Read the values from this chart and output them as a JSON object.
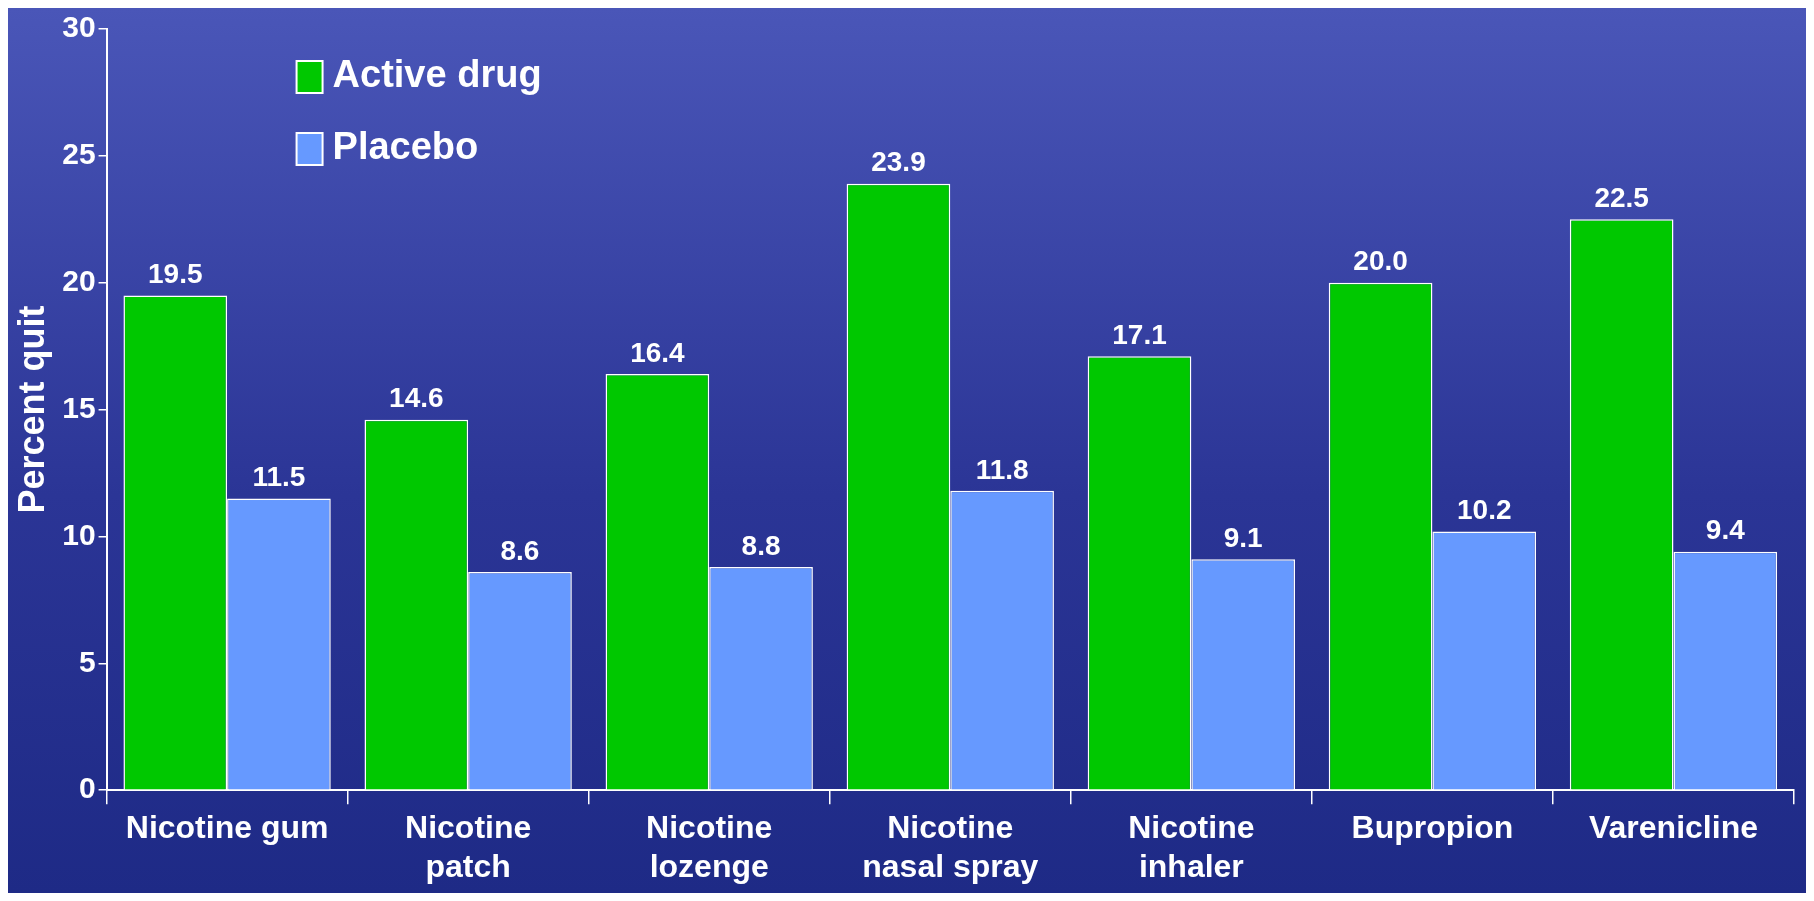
{
  "chart_data": {
    "type": "bar",
    "ylabel": "Percent quit",
    "categories": [
      "Nicotine gum",
      "Nicotine patch",
      "Nicotine lozenge",
      "Nicotine nasal spray",
      "Nicotine inhaler",
      "Bupropion",
      "Varenicline"
    ],
    "series": [
      {
        "name": "Active drug",
        "color": "#00c800",
        "values": [
          19.5,
          14.6,
          16.4,
          23.9,
          17.1,
          20.0,
          22.5
        ],
        "value_labels": [
          "19.5",
          "14.6",
          "16.4",
          "23.9",
          "17.1",
          "20.0",
          "22.5"
        ]
      },
      {
        "name": "Placebo",
        "color": "#6699ff",
        "values": [
          11.5,
          8.6,
          8.8,
          11.8,
          9.1,
          10.2,
          9.4
        ],
        "value_labels": [
          "11.5",
          "8.6",
          "8.8",
          "11.8",
          "9.1",
          "10.2",
          "9.4"
        ]
      }
    ],
    "ylim": [
      0,
      30
    ],
    "yticks": [
      0,
      5,
      10,
      15,
      20,
      25,
      30
    ],
    "grid": false,
    "legend": "top left"
  }
}
